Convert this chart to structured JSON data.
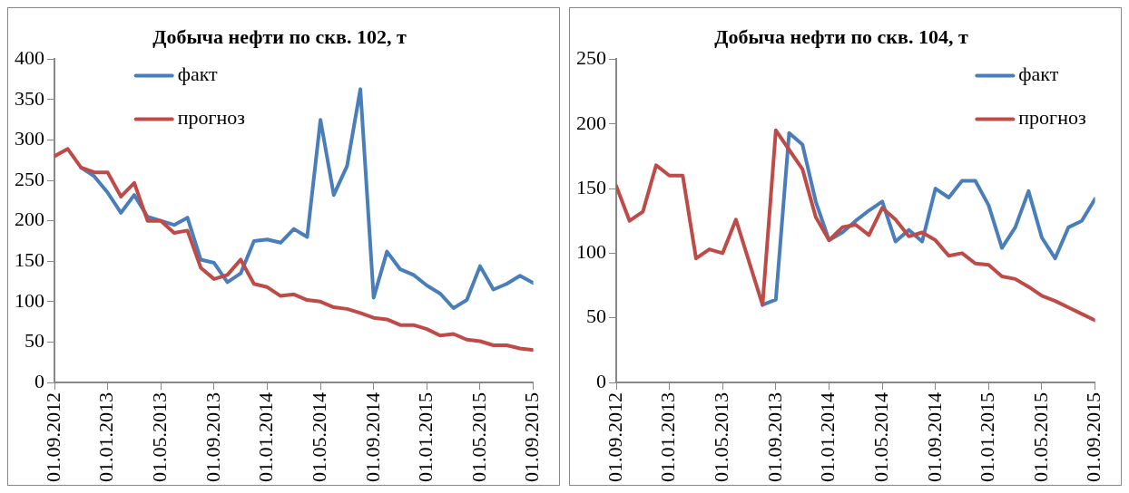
{
  "chart_data": [
    {
      "type": "line",
      "title": "Добыча нефти по скв. 102, т",
      "x": [
        "2012-09",
        "2012-10",
        "2012-11",
        "2012-12",
        "2013-01",
        "2013-02",
        "2013-03",
        "2013-04",
        "2013-05",
        "2013-06",
        "2013-07",
        "2013-08",
        "2013-09",
        "2013-10",
        "2013-11",
        "2013-12",
        "2014-01",
        "2014-02",
        "2014-03",
        "2014-04",
        "2014-05",
        "2014-06",
        "2014-07",
        "2014-08",
        "2014-09",
        "2014-10",
        "2014-11",
        "2014-12",
        "2015-01",
        "2015-02",
        "2015-03",
        "2015-04",
        "2015-05",
        "2015-06",
        "2015-07",
        "2015-08",
        "2015-09"
      ],
      "series": [
        {
          "name": "факт",
          "color": "#4a7ebb",
          "values": [
            null,
            null,
            266,
            255,
            235,
            210,
            232,
            205,
            200,
            195,
            204,
            152,
            148,
            124,
            135,
            175,
            177,
            173,
            190,
            180,
            325,
            232,
            268,
            363,
            105,
            162,
            140,
            133,
            120,
            110,
            92,
            102,
            144,
            115,
            122,
            132,
            123
          ]
        },
        {
          "name": "прогноз",
          "color": "#be4b48",
          "values": [
            280,
            289,
            266,
            260,
            260,
            230,
            247,
            200,
            200,
            185,
            188,
            142,
            128,
            133,
            152,
            122,
            118,
            107,
            109,
            102,
            100,
            93,
            91,
            86,
            80,
            78,
            71,
            71,
            66,
            58,
            60,
            53,
            51,
            46,
            46,
            42,
            40
          ]
        }
      ],
      "xlim": [
        "2012-09-01",
        "2015-09-01"
      ],
      "xticks": [
        {
          "value": "2012-09-01",
          "label": "01.09.2012"
        },
        {
          "value": "2013-01-01",
          "label": "01.01.2013"
        },
        {
          "value": "2013-05-01",
          "label": "01.05.2013"
        },
        {
          "value": "2013-09-01",
          "label": "01.09.2013"
        },
        {
          "value": "2014-01-01",
          "label": "01.01.2014"
        },
        {
          "value": "2014-05-01",
          "label": "01.05.2014"
        },
        {
          "value": "2014-09-01",
          "label": "01.09.2014"
        },
        {
          "value": "2015-01-01",
          "label": "01.01.2015"
        },
        {
          "value": "2015-05-01",
          "label": "01.05.2015"
        },
        {
          "value": "2015-09-01",
          "label": "01.09.2015"
        }
      ],
      "ylim": [
        0,
        400
      ],
      "yticks": [
        0,
        50,
        100,
        150,
        200,
        250,
        300,
        350,
        400
      ],
      "grid": false,
      "legend": "top",
      "marker": "none",
      "line_style": "solid"
    },
    {
      "type": "line",
      "title": "Добыча нефти по скв. 104, т",
      "x": [
        "2012-09",
        "2012-10",
        "2012-11",
        "2012-12",
        "2013-01",
        "2013-02",
        "2013-03",
        "2013-04",
        "2013-05",
        "2013-06",
        "2013-07",
        "2013-08",
        "2013-09",
        "2013-10",
        "2013-11",
        "2013-12",
        "2014-01",
        "2014-02",
        "2014-03",
        "2014-04",
        "2014-05",
        "2014-06",
        "2014-07",
        "2014-08",
        "2014-09",
        "2014-10",
        "2014-11",
        "2014-12",
        "2015-01",
        "2015-02",
        "2015-03",
        "2015-04",
        "2015-05",
        "2015-06",
        "2015-07",
        "2015-08",
        "2015-09"
      ],
      "series": [
        {
          "name": "факт",
          "color": "#4a7ebb",
          "values": [
            null,
            null,
            null,
            null,
            null,
            null,
            null,
            null,
            null,
            null,
            null,
            60,
            64,
            193,
            184,
            140,
            110,
            116,
            125,
            133,
            140,
            109,
            118,
            109,
            150,
            143,
            156,
            156,
            137,
            104,
            120,
            148,
            112,
            96,
            120,
            125,
            142
          ]
        },
        {
          "name": "прогноз",
          "color": "#be4b48",
          "values": [
            152,
            125,
            132,
            168,
            160,
            160,
            96,
            103,
            100,
            126,
            93,
            60,
            195,
            180,
            165,
            128,
            110,
            120,
            122,
            114,
            135,
            126,
            113,
            116,
            110,
            98,
            100,
            92,
            91,
            82,
            80,
            74,
            67,
            63,
            58,
            53,
            48
          ]
        }
      ],
      "xlim": [
        "2012-09-01",
        "2015-09-01"
      ],
      "xticks": [
        {
          "value": "2012-09-01",
          "label": "01.09.2012"
        },
        {
          "value": "2013-01-01",
          "label": "01.01.2013"
        },
        {
          "value": "2013-05-01",
          "label": "01.05.2013"
        },
        {
          "value": "2013-09-01",
          "label": "01.09.2013"
        },
        {
          "value": "2014-01-01",
          "label": "01.01.2014"
        },
        {
          "value": "2014-05-01",
          "label": "01.05.2014"
        },
        {
          "value": "2014-09-01",
          "label": "01.09.2014"
        },
        {
          "value": "2015-01-01",
          "label": "01.01.2015"
        },
        {
          "value": "2015-05-01",
          "label": "01.05.2015"
        },
        {
          "value": "2015-09-01",
          "label": "01.09.2015"
        }
      ],
      "ylim": [
        0,
        250
      ],
      "yticks": [
        0,
        50,
        100,
        150,
        200,
        250
      ],
      "grid": false,
      "legend": "top right",
      "marker": "none",
      "line_style": "solid"
    }
  ]
}
